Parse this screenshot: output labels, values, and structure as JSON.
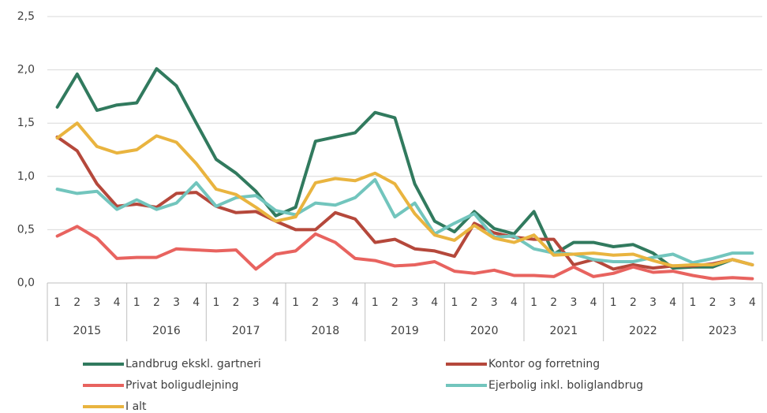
{
  "chart_data": {
    "type": "line",
    "categories": [
      "1",
      "2",
      "3",
      "4",
      "1",
      "2",
      "3",
      "4",
      "1",
      "2",
      "3",
      "4",
      "1",
      "2",
      "3",
      "4",
      "1",
      "2",
      "3",
      "4",
      "1",
      "2",
      "3",
      "4",
      "1",
      "2",
      "3",
      "4",
      "1",
      "2",
      "3",
      "4",
      "1",
      "2",
      "3",
      "4"
    ],
    "category_groups": [
      "2015",
      "2016",
      "2017",
      "2018",
      "2019",
      "2020",
      "2021",
      "2022",
      "2023"
    ],
    "ylim": [
      0,
      2.5
    ],
    "yticks": [
      {
        "value": 0,
        "label": "0,0"
      },
      {
        "value": 0.5,
        "label": "0,5"
      },
      {
        "value": 1,
        "label": "1,0"
      },
      {
        "value": 1.5,
        "label": "1,5"
      },
      {
        "value": 2,
        "label": "2,0"
      },
      {
        "value": 2.5,
        "label": "2,5"
      }
    ],
    "grid": true,
    "series": [
      {
        "name": "Landbrug ekskl. gartneri",
        "color": "#317a5e",
        "values": [
          1.65,
          1.96,
          1.62,
          1.67,
          1.69,
          2.01,
          1.85,
          1.5,
          1.16,
          1.03,
          0.86,
          0.63,
          0.71,
          1.33,
          1.37,
          1.41,
          1.6,
          1.55,
          0.93,
          0.58,
          0.48,
          0.67,
          0.51,
          0.46,
          0.67,
          0.27,
          0.38,
          0.38,
          0.34,
          0.36,
          0.28,
          0.14,
          0.15,
          0.15,
          0.22,
          0.17
        ]
      },
      {
        "name": "Kontor og forretning",
        "color": "#b5483b",
        "values": [
          1.37,
          1.24,
          0.93,
          0.72,
          0.74,
          0.71,
          0.84,
          0.85,
          0.72,
          0.66,
          0.67,
          0.58,
          0.5,
          0.5,
          0.66,
          0.6,
          0.38,
          0.41,
          0.32,
          0.3,
          0.25,
          0.56,
          0.47,
          0.43,
          0.41,
          0.41,
          0.17,
          0.22,
          0.13,
          0.17,
          0.14,
          0.16,
          0.16,
          0.18,
          0.22,
          0.17
        ]
      },
      {
        "name": "Privat boligudlejning",
        "color": "#e8635f",
        "values": [
          0.44,
          0.53,
          0.42,
          0.23,
          0.24,
          0.24,
          0.32,
          0.31,
          0.3,
          0.31,
          0.13,
          0.27,
          0.3,
          0.46,
          0.38,
          0.23,
          0.21,
          0.16,
          0.17,
          0.2,
          0.11,
          0.09,
          0.12,
          0.07,
          0.07,
          0.06,
          0.15,
          0.06,
          0.09,
          0.15,
          0.1,
          0.11,
          0.07,
          0.04,
          0.05,
          0.04
        ]
      },
      {
        "name": "Ejerbolig inkl. boliglandbrug",
        "color": "#72c5bd",
        "values": [
          0.88,
          0.84,
          0.86,
          0.69,
          0.78,
          0.69,
          0.75,
          0.94,
          0.72,
          0.8,
          0.82,
          0.68,
          0.64,
          0.75,
          0.73,
          0.8,
          0.97,
          0.62,
          0.75,
          0.46,
          0.56,
          0.65,
          0.43,
          0.44,
          0.32,
          0.28,
          0.27,
          0.22,
          0.2,
          0.2,
          0.24,
          0.27,
          0.19,
          0.23,
          0.28,
          0.28
        ]
      },
      {
        "name": "I alt",
        "color": "#e9b43f",
        "values": [
          1.36,
          1.5,
          1.28,
          1.22,
          1.25,
          1.38,
          1.32,
          1.12,
          0.88,
          0.83,
          0.71,
          0.58,
          0.62,
          0.94,
          0.98,
          0.96,
          1.03,
          0.93,
          0.65,
          0.45,
          0.4,
          0.54,
          0.42,
          0.38,
          0.45,
          0.26,
          0.27,
          0.28,
          0.26,
          0.27,
          0.21,
          0.16,
          0.17,
          0.17,
          0.22,
          0.17
        ]
      }
    ]
  }
}
